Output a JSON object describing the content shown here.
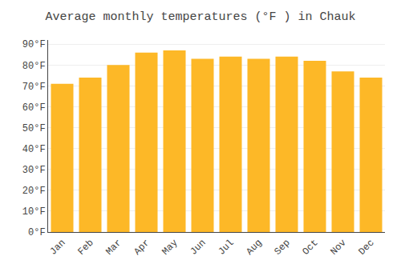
{
  "chart_data": {
    "type": "bar",
    "title": "Average monthly temperatures (°F ) in Chauk",
    "categories": [
      "Jan",
      "Feb",
      "Mar",
      "Apr",
      "May",
      "Jun",
      "Jul",
      "Aug",
      "Sep",
      "Oct",
      "Nov",
      "Dec"
    ],
    "values": [
      71,
      74,
      80,
      86,
      87,
      83,
      84,
      83,
      84,
      82,
      77,
      74
    ],
    "color": "#FDB827",
    "ylim": [
      0,
      92
    ],
    "yticks": [
      {
        "value": 0,
        "label": "0°F"
      },
      {
        "value": 10,
        "label": "10°F"
      },
      {
        "value": 20,
        "label": "20°F"
      },
      {
        "value": 30,
        "label": "30°F"
      },
      {
        "value": 40,
        "label": "40°F"
      },
      {
        "value": 50,
        "label": "50°F"
      },
      {
        "value": 60,
        "label": "60°F"
      },
      {
        "value": 70,
        "label": "70°F"
      },
      {
        "value": 80,
        "label": "80°F"
      },
      {
        "value": 90,
        "label": "90°F"
      }
    ],
    "grid": true
  }
}
